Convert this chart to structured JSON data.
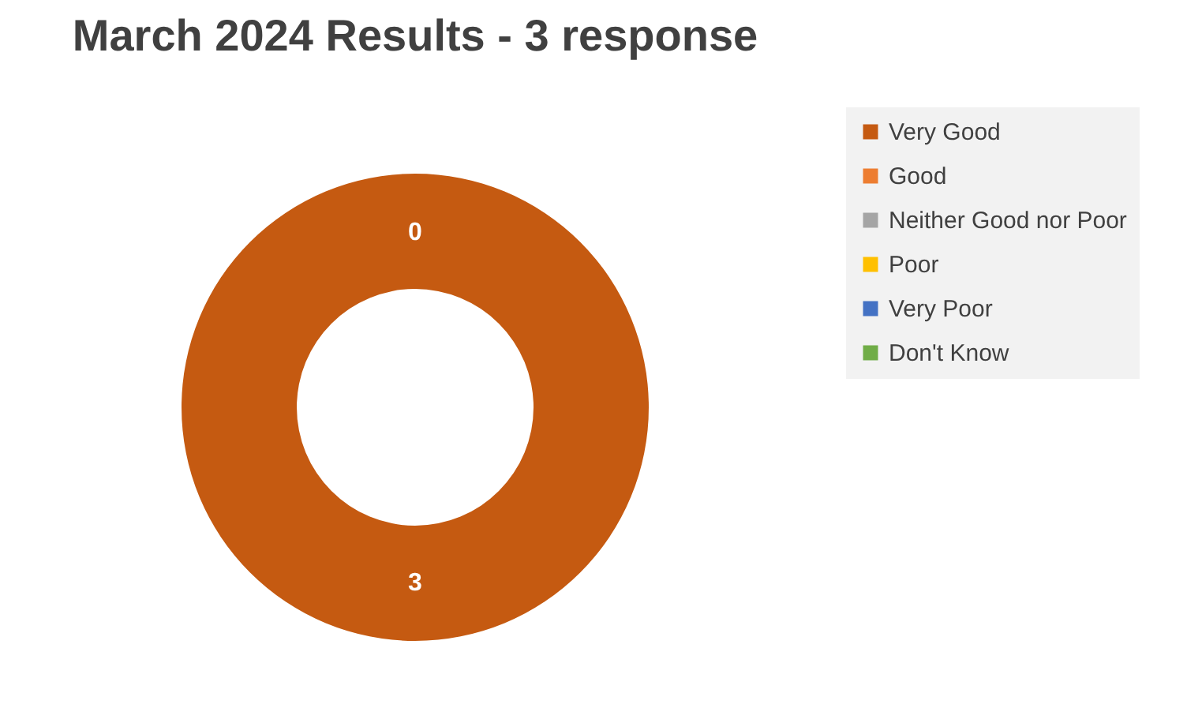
{
  "chart_data": {
    "type": "donut",
    "title": "March 2024 Results - 3 response",
    "categories": [
      "Very Good",
      "Good",
      "Neither Good nor Poor",
      "Poor",
      "Very Poor",
      "Don't Know"
    ],
    "values": [
      3,
      0,
      0,
      0,
      0,
      0
    ],
    "colors": [
      "#c55a11",
      "#ed7d31",
      "#a5a5a5",
      "#ffc000",
      "#4472c4",
      "#70ad47"
    ],
    "value_labels": [
      "3",
      "0",
      null,
      null,
      null,
      null
    ],
    "legend": "right"
  }
}
